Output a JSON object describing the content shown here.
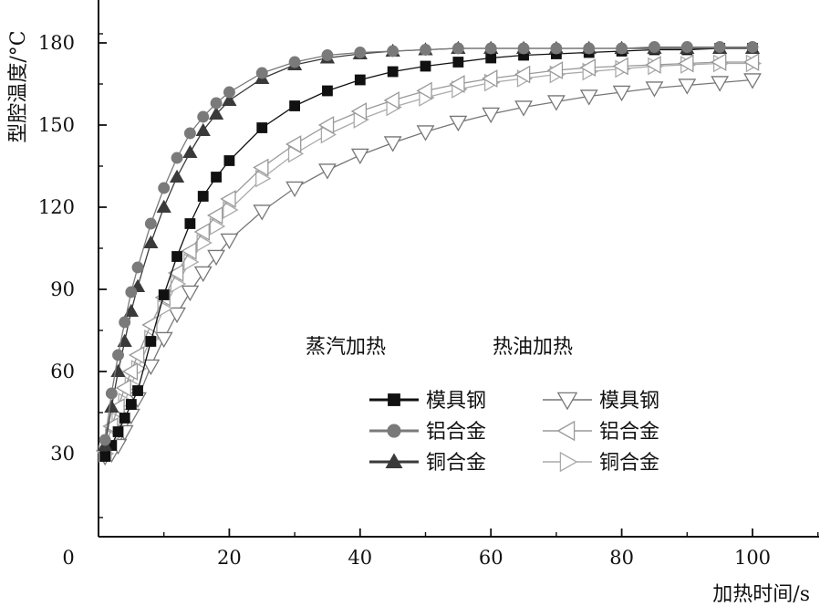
{
  "chart_data": {
    "type": "line",
    "title": "",
    "xlabel": "加热时间/s",
    "ylabel": "型腔温度/°C",
    "origin_label": "0",
    "xlim": [
      0,
      110
    ],
    "ylim": [
      20,
      195
    ],
    "xticks": [
      20,
      40,
      60,
      80,
      100
    ],
    "yticks": [
      30,
      60,
      90,
      120,
      150,
      180
    ],
    "grid": false,
    "legend": {
      "placement": "center-right",
      "groups": [
        {
          "title": "蒸汽加热",
          "entries": [
            "模具钢",
            "铝合金",
            "铜合金"
          ]
        },
        {
          "title": "热油加热",
          "entries": [
            "模具钢",
            "铝合金",
            "铜合金"
          ]
        }
      ]
    },
    "x": [
      1,
      2,
      3,
      4,
      5,
      6,
      8,
      10,
      12,
      14,
      16,
      18,
      20,
      25,
      30,
      35,
      40,
      45,
      50,
      55,
      60,
      65,
      70,
      75,
      80,
      85,
      90,
      95,
      100
    ],
    "series": [
      {
        "name": "模具钢",
        "group": "蒸汽加热",
        "marker": "square",
        "filled": true,
        "color": "#111111",
        "values": [
          29,
          33,
          38,
          43,
          48,
          53,
          71,
          88,
          102,
          114,
          124,
          131,
          137,
          149,
          157,
          162.5,
          166.5,
          169.5,
          171.5,
          173,
          174.5,
          175.5,
          176,
          176.5,
          177,
          177.5,
          177.5,
          178,
          178
        ]
      },
      {
        "name": "铝合金",
        "group": "蒸汽加热",
        "marker": "circle",
        "filled": true,
        "color": "#7a7a7a",
        "values": [
          35,
          52,
          66,
          78,
          89,
          98,
          114,
          127,
          138,
          147,
          153,
          158,
          162,
          169,
          173,
          175.5,
          176.5,
          177,
          177.5,
          178,
          178,
          178,
          178,
          178,
          178,
          178.5,
          178.5,
          178.5,
          178.5
        ]
      },
      {
        "name": "铜合金",
        "group": "蒸汽加热",
        "marker": "triangle-up",
        "filled": true,
        "color": "#3a3a3a",
        "values": [
          33,
          47,
          60,
          71,
          82,
          91,
          107,
          120,
          131,
          140,
          148,
          154,
          159,
          167,
          172,
          174.5,
          176,
          177,
          177.5,
          178,
          178,
          178,
          178,
          178,
          178,
          178,
          178,
          178,
          178
        ]
      },
      {
        "name": "模具钢",
        "group": "热油加热",
        "marker": "triangle-down",
        "filled": false,
        "color": "#777777",
        "values": [
          29,
          30,
          33,
          38,
          44,
          50,
          62,
          72,
          81,
          89,
          96,
          102,
          108,
          118.5,
          127,
          133.5,
          139,
          143.5,
          147.5,
          151,
          154,
          156.5,
          158.5,
          160.5,
          162,
          163.5,
          164.5,
          165.5,
          166.5
        ]
      },
      {
        "name": "铝合金",
        "group": "热油加热",
        "marker": "triangle-left",
        "filled": false,
        "color": "#999999",
        "values": [
          31,
          40,
          47,
          54,
          60,
          66,
          77,
          87,
          96,
          104,
          111,
          117,
          123,
          134.5,
          143,
          150,
          155,
          159,
          162.5,
          165,
          167,
          168.5,
          170,
          171,
          171.5,
          172,
          172.5,
          173,
          173
        ]
      },
      {
        "name": "铜合金",
        "group": "热油加热",
        "marker": "triangle-right",
        "filled": false,
        "color": "#aaaaaa",
        "values": [
          30,
          36,
          42,
          49,
          55,
          61,
          72,
          83,
          92,
          100,
          107,
          113,
          119,
          130.5,
          139.5,
          146.5,
          152,
          156.5,
          160,
          163,
          165.5,
          167,
          168.5,
          169.5,
          170.5,
          171.5,
          172,
          172.5,
          172.5
        ]
      }
    ]
  }
}
